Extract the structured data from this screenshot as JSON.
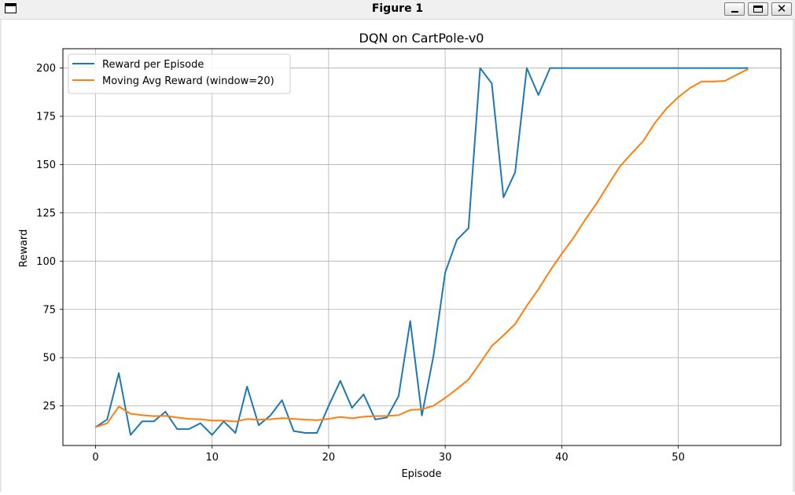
{
  "window": {
    "title": "Figure 1",
    "minimize_label": "_",
    "close_label": "✕"
  },
  "chart_data": {
    "type": "line",
    "title": "DQN on CartPole-v0",
    "xlabel": "Episode",
    "ylabel": "Reward",
    "xlim": [
      -2.8,
      58.8
    ],
    "ylim": [
      4.5,
      210
    ],
    "xticks": [
      0,
      10,
      20,
      30,
      40,
      50
    ],
    "yticks": [
      25,
      50,
      75,
      100,
      125,
      150,
      175,
      200
    ],
    "grid": true,
    "legend_position": "top-left",
    "x": [
      0,
      1,
      2,
      3,
      4,
      5,
      6,
      7,
      8,
      9,
      10,
      11,
      12,
      13,
      14,
      15,
      16,
      17,
      18,
      19,
      20,
      21,
      22,
      23,
      24,
      25,
      26,
      27,
      28,
      29,
      30,
      31,
      32,
      33,
      34,
      35,
      36,
      37,
      38,
      39,
      40,
      41,
      42,
      43,
      44,
      45,
      46,
      47,
      48,
      49,
      50,
      51,
      52,
      53,
      54,
      55,
      56
    ],
    "series": [
      {
        "name": "Reward per Episode",
        "color": "#1f77b4",
        "values": [
          14,
          18,
          42,
          10,
          17,
          17,
          22,
          13,
          13,
          16,
          10,
          17,
          11,
          35,
          15,
          20,
          28,
          12,
          11,
          11,
          25,
          38,
          24,
          31,
          18,
          19,
          30,
          69,
          20,
          51,
          94,
          111,
          117,
          200,
          192,
          133,
          146,
          200,
          186,
          200,
          200,
          200,
          200,
          200,
          200,
          200,
          200,
          200,
          200,
          200,
          200,
          200,
          200,
          200,
          200,
          200,
          200
        ]
      },
      {
        "name": "Moving Avg Reward (window=20)",
        "color": "#ff7f0e",
        "values": [
          14,
          16,
          24.7,
          21.0,
          20.2,
          19.7,
          19.9,
          19.0,
          18.3,
          18.1,
          17.4,
          17.4,
          16.9,
          18.2,
          17.9,
          18.1,
          18.7,
          18.3,
          17.9,
          17.6,
          18.3,
          19.3,
          18.6,
          19.4,
          19.7,
          19.8,
          20.2,
          22.9,
          23.2,
          25.1,
          29.1,
          33.7,
          38.7,
          47.2,
          56.0,
          61.5,
          67.4,
          76.8,
          85.4,
          95.0,
          103.8,
          112.0,
          121.3,
          129.9,
          139.6,
          149.1,
          155.8,
          162.2,
          171.6,
          179.1,
          184.9,
          189.6,
          193.0,
          193.0,
          193.3,
          196.5,
          199.5
        ]
      }
    ]
  }
}
